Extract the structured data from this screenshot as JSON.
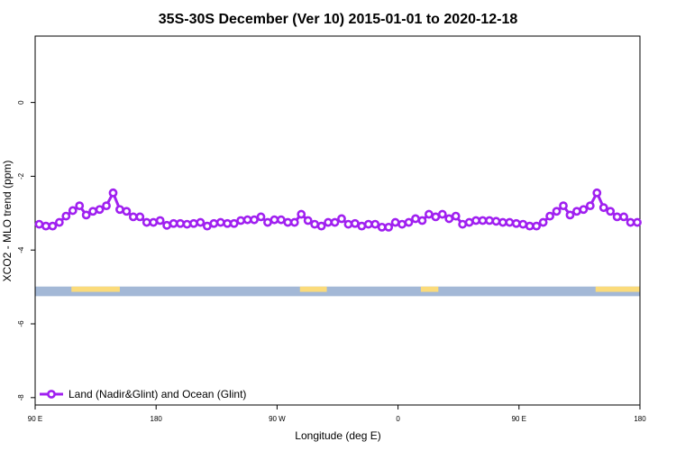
{
  "chart_data": {
    "type": "line",
    "title": "35S-30S December (Ver 10)   2015-01-01 to 2020-12-18",
    "xlabel": "Longitude (deg E)",
    "ylabel": "XCO2 - MLO trend (ppm)",
    "x_ticks": [
      {
        "value": 90,
        "label": "90 E"
      },
      {
        "value": 180,
        "label": "180"
      },
      {
        "value": 270,
        "label": "90 W"
      },
      {
        "value": 360,
        "label": "0"
      },
      {
        "value": 450,
        "label": "90 E"
      },
      {
        "value": 540,
        "label": "180"
      }
    ],
    "y_ticks": [
      {
        "value": 0,
        "label": "0"
      },
      {
        "value": -2,
        "label": "-2"
      },
      {
        "value": -4,
        "label": "-4"
      },
      {
        "value": -6,
        "label": "-6"
      },
      {
        "value": -8,
        "label": "-8"
      }
    ],
    "xlim": [
      90,
      540
    ],
    "ylim": [
      -8.2,
      1.8
    ],
    "grid": false,
    "legend_position": "bottom-left",
    "series": [
      {
        "name": "Land (Nadir&Glint) and Ocean (Glint)",
        "color": "#a020f0",
        "marker": "open-circle",
        "x": [
          93,
          98,
          103,
          108,
          113,
          118,
          123,
          128,
          133,
          138,
          143,
          148,
          153,
          158,
          163,
          168,
          173,
          178,
          183,
          188,
          193,
          198,
          203,
          208,
          213,
          218,
          223,
          228,
          233,
          238,
          243,
          248,
          253,
          258,
          263,
          268,
          273,
          278,
          283,
          288,
          293,
          298,
          303,
          308,
          313,
          318,
          323,
          328,
          333,
          338,
          343,
          348,
          353,
          358,
          363,
          368,
          373,
          378,
          383,
          388,
          393,
          398,
          403,
          408,
          413,
          418,
          423,
          428,
          433,
          438,
          443,
          448,
          453,
          458,
          463,
          468,
          473,
          478,
          483,
          488,
          493,
          498,
          503,
          508,
          513,
          518,
          523,
          528,
          533,
          538
        ],
        "y": [
          -3.3,
          -3.35,
          -3.35,
          -3.25,
          -3.08,
          -2.93,
          -2.8,
          -3.05,
          -2.95,
          -2.9,
          -2.8,
          -2.45,
          -2.9,
          -2.95,
          -3.1,
          -3.1,
          -3.25,
          -3.25,
          -3.2,
          -3.33,
          -3.28,
          -3.28,
          -3.3,
          -3.28,
          -3.25,
          -3.35,
          -3.28,
          -3.25,
          -3.28,
          -3.28,
          -3.2,
          -3.18,
          -3.18,
          -3.1,
          -3.25,
          -3.18,
          -3.18,
          -3.25,
          -3.25,
          -3.03,
          -3.2,
          -3.3,
          -3.35,
          -3.25,
          -3.25,
          -3.15,
          -3.3,
          -3.28,
          -3.35,
          -3.3,
          -3.3,
          -3.38,
          -3.38,
          -3.25,
          -3.3,
          -3.25,
          -3.15,
          -3.2,
          -3.03,
          -3.1,
          -3.03,
          -3.15,
          -3.08,
          -3.3,
          -3.25,
          -3.2,
          -3.2,
          -3.2,
          -3.22,
          -3.25,
          -3.25,
          -3.28,
          -3.3,
          -3.35,
          -3.35,
          -3.25,
          -3.08,
          -2.95,
          -2.8,
          -3.05,
          -2.95,
          -2.9,
          -2.8,
          -2.45,
          -2.85,
          -2.95,
          -3.1,
          -3.1,
          -3.25,
          -3.25
        ]
      }
    ],
    "surface_strip": {
      "y_range": [
        -5.25,
        -4.99
      ],
      "ocean_color": "#a3b8d6",
      "land_color": "#fbdb7a",
      "land_segments": [
        [
          117,
          153
        ],
        [
          287,
          307
        ],
        [
          377,
          390
        ],
        [
          507,
          547
        ]
      ]
    }
  }
}
